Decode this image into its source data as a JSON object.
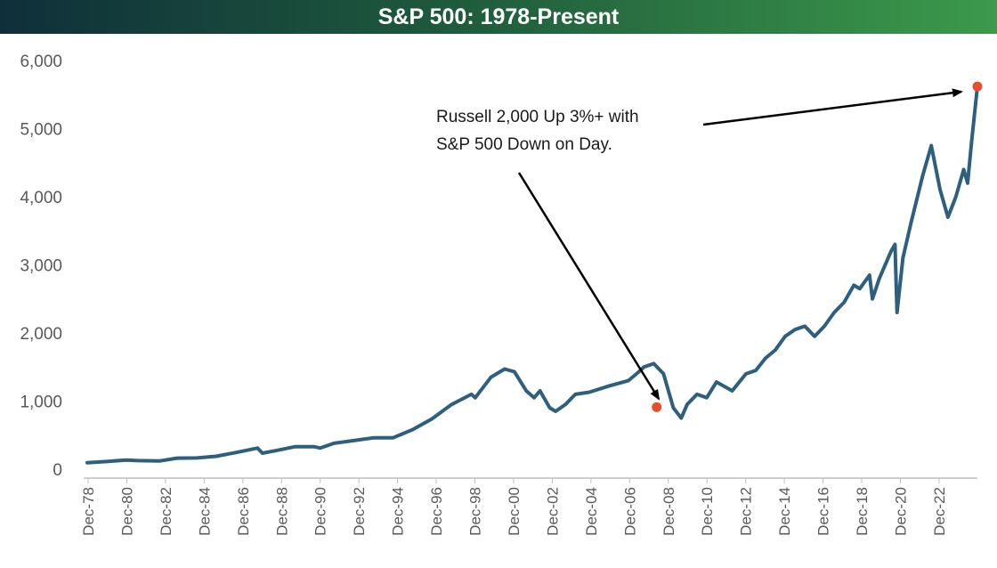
{
  "chart_data": {
    "type": "line",
    "title": "S&P 500: 1978-Present",
    "xlabel": "",
    "ylabel": "",
    "ylim": [
      0,
      6000
    ],
    "y_ticks": [
      "0",
      "1,000",
      "2,000",
      "3,000",
      "4,000",
      "5,000",
      "6,000"
    ],
    "x_ticks": [
      "Dec-78",
      "Dec-80",
      "Dec-82",
      "Dec-84",
      "Dec-86",
      "Dec-88",
      "Dec-90",
      "Dec-92",
      "Dec-94",
      "Dec-96",
      "Dec-98",
      "Dec-00",
      "Dec-02",
      "Dec-04",
      "Dec-06",
      "Dec-08",
      "Dec-10",
      "Dec-12",
      "Dec-14",
      "Dec-16",
      "Dec-18",
      "Dec-20",
      "Dec-22"
    ],
    "x_range": [
      1978.92,
      2024.3
    ],
    "grid": false,
    "line_color": "#2e5f7f",
    "marker_color": "#e4502b",
    "series": [
      {
        "x": [
          1978.92,
          1980.0,
          1980.92,
          1981.5,
          1982.6,
          1983.5,
          1984.5,
          1985.5,
          1986.5,
          1987.6,
          1987.85,
          1988.5,
          1989.5,
          1990.5,
          1990.8,
          1991.5,
          1992.5,
          1993.5,
          1994.5,
          1995.5,
          1996.5,
          1997.5,
          1998.5,
          1998.7,
          1999.5,
          2000.2,
          2000.7,
          2001.3,
          2001.7,
          2002.0,
          2002.5,
          2002.8,
          2003.3,
          2003.8,
          2004.5,
          2005.5,
          2006.5,
          2007.0,
          2007.3,
          2007.8,
          2008.3,
          2008.8,
          2009.2,
          2009.5,
          2010.0,
          2010.5,
          2011.0,
          2011.5,
          2011.8,
          2012.5,
          2013.0,
          2013.5,
          2014.0,
          2014.5,
          2015.0,
          2015.5,
          2016.0,
          2016.5,
          2017.0,
          2017.5,
          2018.0,
          2018.3,
          2018.8,
          2018.95,
          2019.3,
          2019.9,
          2020.1,
          2020.2,
          2020.5,
          2020.9,
          2021.5,
          2021.95,
          2022.4,
          2022.8,
          2023.2,
          2023.6,
          2023.8,
          2024.0,
          2024.3
        ],
        "y": [
          96,
          115,
          135,
          125,
          120,
          162,
          165,
          190,
          245,
          310,
          235,
          270,
          330,
          330,
          310,
          380,
          420,
          460,
          460,
          580,
          740,
          950,
          1100,
          1050,
          1350,
          1470,
          1430,
          1150,
          1050,
          1150,
          900,
          850,
          950,
          1100,
          1130,
          1220,
          1300,
          1420,
          1500,
          1550,
          1400,
          900,
          750,
          950,
          1100,
          1050,
          1280,
          1200,
          1150,
          1400,
          1450,
          1630,
          1750,
          1950,
          2050,
          2100,
          1950,
          2100,
          2300,
          2450,
          2700,
          2650,
          2850,
          2500,
          2800,
          3200,
          3300,
          2300,
          3100,
          3600,
          4300,
          4750,
          4100,
          3700,
          4000,
          4400,
          4200,
          4800,
          5620
        ]
      }
    ],
    "highlighted_points": [
      {
        "x": 2007.95,
        "y": 910
      },
      {
        "x": 2024.3,
        "y": 5620
      }
    ],
    "annotation": {
      "line1": "Russell 2,000 Up 3%+ with",
      "line2": "S&P 500 Down on Day."
    }
  }
}
